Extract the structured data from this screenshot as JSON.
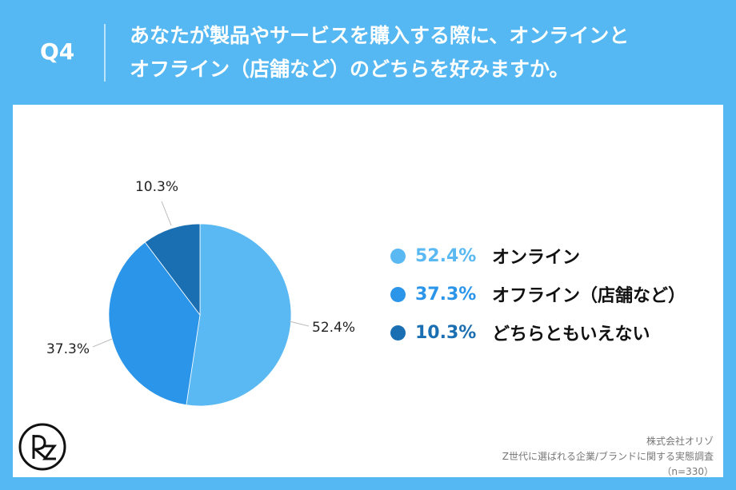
{
  "header": {
    "question_number": "Q4",
    "question_line1": "あなたが製品やサービスを購入する際に、オンラインと",
    "question_line2": "オフライン（店舗など）のどちらを好みますか。"
  },
  "chart_data": {
    "type": "pie",
    "categories": [
      "オンライン",
      "オフライン（店舗など）",
      "どちらともいえない"
    ],
    "values": [
      52.4,
      37.3,
      10.3
    ],
    "value_labels": [
      "52.4%",
      "37.3%",
      "10.3%"
    ],
    "colors": [
      "#5ab9f2",
      "#2b95ea",
      "#1a6fb2"
    ],
    "legend_placement": "right"
  },
  "legend": {
    "items": [
      {
        "pct": "52.4%",
        "name": "オンライン",
        "color": "#5ab9f2"
      },
      {
        "pct": "37.3%",
        "name": "オフライン（店舗など）",
        "color": "#2b95ea"
      },
      {
        "pct": "10.3%",
        "name": "どちらともいえない",
        "color": "#1a6fb2"
      }
    ]
  },
  "footer": {
    "logo_icon": "irz-logo-icon",
    "company": "株式会社オリゾ",
    "survey": "Z世代に選ばれる企業/ブランドに関する実態調査",
    "sample": "（n=330）"
  },
  "colors": {
    "frame": "#55b8f2",
    "text_dark": "#111111"
  }
}
